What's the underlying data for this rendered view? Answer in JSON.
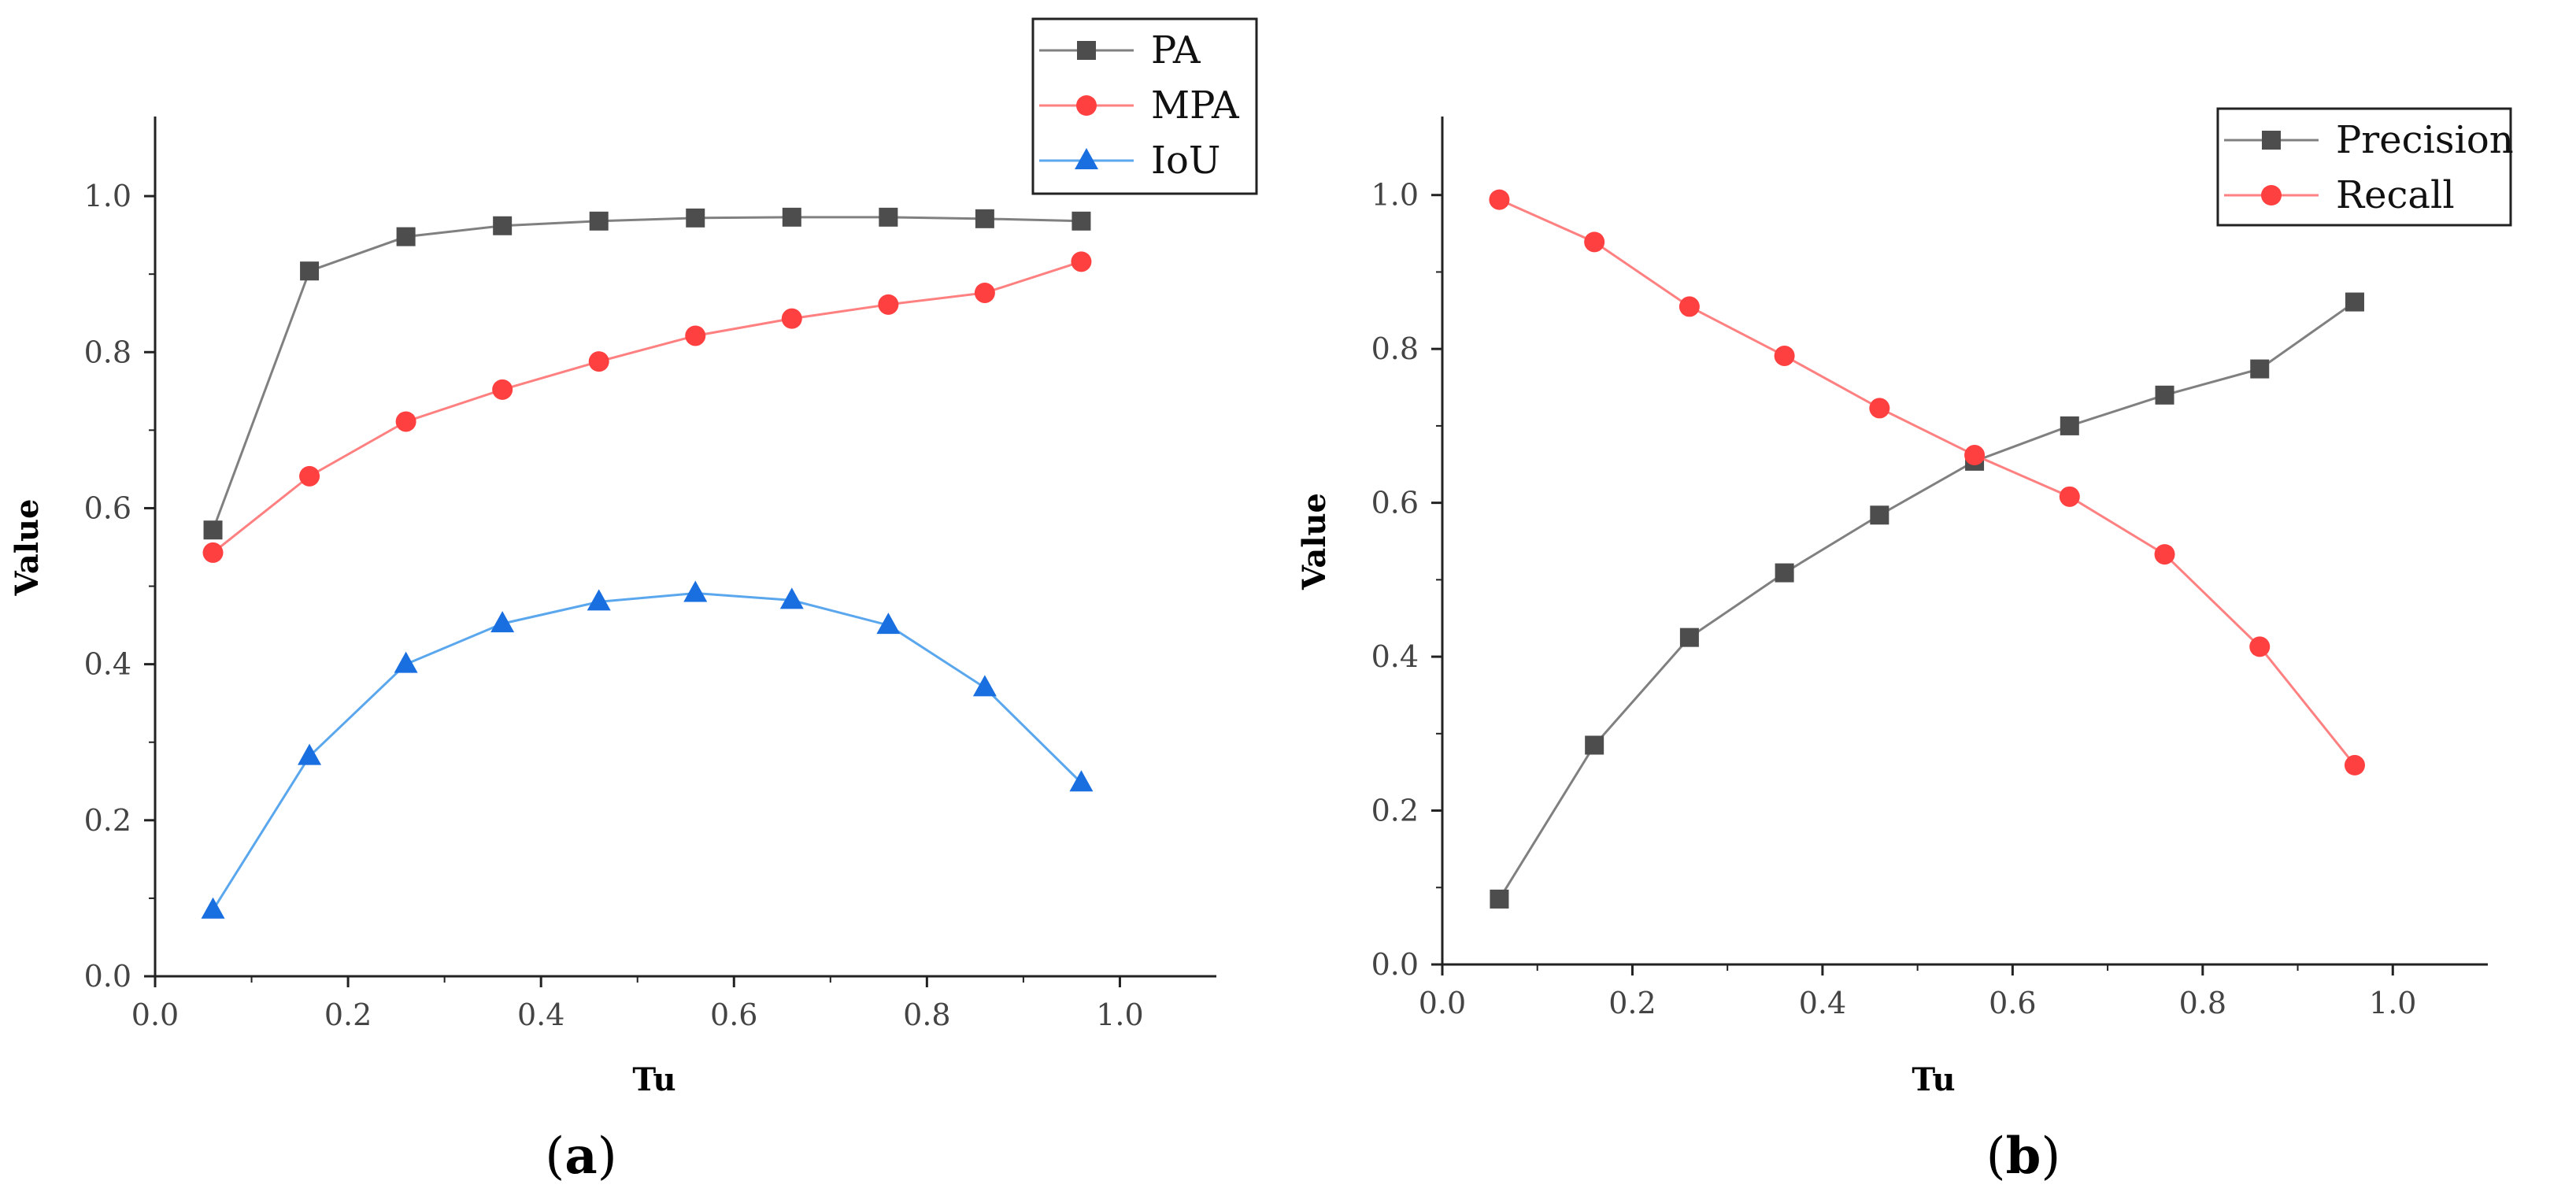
{
  "chart_data": [
    {
      "type": "line",
      "panel": "a",
      "caption": {
        "open": "(",
        "letter": "a",
        "close": ")"
      },
      "xlabel": "Tu",
      "ylabel": "Value",
      "xlim": [
        0.0,
        1.1
      ],
      "ylim": [
        0.0,
        1.1
      ],
      "xticks": [
        0.0,
        0.2,
        0.4,
        0.6,
        0.8,
        1.0
      ],
      "yticks": [
        0.0,
        0.2,
        0.4,
        0.6,
        0.8,
        1.0
      ],
      "x": [
        0.06,
        0.16,
        0.26,
        0.36,
        0.46,
        0.56,
        0.66,
        0.76,
        0.86,
        0.96
      ],
      "legend_position": "top-right",
      "series": [
        {
          "name": "PA",
          "color": "#808080",
          "marker_color": "#4d4d4d",
          "marker": "square",
          "values": [
            0.572,
            0.904,
            0.948,
            0.962,
            0.968,
            0.972,
            0.973,
            0.973,
            0.971,
            0.968
          ]
        },
        {
          "name": "MPA",
          "color": "#ff8080",
          "marker_color": "#ff4040",
          "marker": "circle",
          "values": [
            0.543,
            0.641,
            0.711,
            0.752,
            0.788,
            0.821,
            0.843,
            0.861,
            0.876,
            0.916
          ]
        },
        {
          "name": "IoU",
          "color": "#5aa7ee",
          "marker_color": "#1a6fe0",
          "marker": "triangle",
          "values": [
            0.085,
            0.282,
            0.4,
            0.452,
            0.48,
            0.491,
            0.482,
            0.45,
            0.37,
            0.248
          ]
        }
      ]
    },
    {
      "type": "line",
      "panel": "b",
      "caption": {
        "open": "(",
        "letter": "b",
        "close": ")"
      },
      "xlabel": "Tu",
      "ylabel": "Value",
      "xlim": [
        0.0,
        1.1
      ],
      "ylim": [
        0.0,
        1.1
      ],
      "xticks": [
        0.0,
        0.2,
        0.4,
        0.6,
        0.8,
        1.0
      ],
      "yticks": [
        0.0,
        0.2,
        0.4,
        0.6,
        0.8,
        1.0
      ],
      "x": [
        0.06,
        0.16,
        0.26,
        0.36,
        0.46,
        0.56,
        0.66,
        0.76,
        0.86,
        0.96
      ],
      "legend_position": "top-right",
      "series": [
        {
          "name": "Precision",
          "color": "#808080",
          "marker_color": "#4d4d4d",
          "marker": "square",
          "values": [
            0.085,
            0.285,
            0.425,
            0.509,
            0.584,
            0.654,
            0.7,
            0.74,
            0.774,
            0.861
          ]
        },
        {
          "name": "Recall",
          "color": "#ff8080",
          "marker_color": "#ff4040",
          "marker": "circle",
          "values": [
            0.994,
            0.939,
            0.855,
            0.791,
            0.723,
            0.662,
            0.608,
            0.533,
            0.413,
            0.259
          ]
        }
      ]
    }
  ]
}
